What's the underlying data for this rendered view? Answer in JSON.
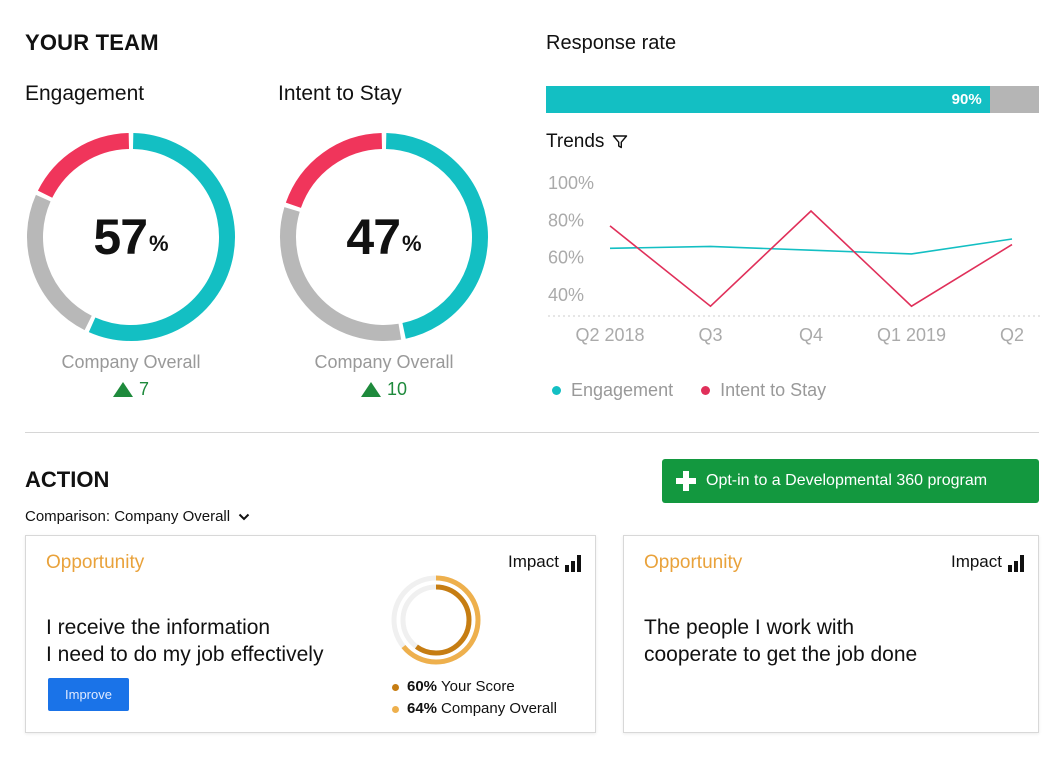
{
  "team": {
    "title": "YOUR TEAM",
    "engagement": {
      "label": "Engagement",
      "value": "57",
      "unit": "%",
      "company_label": "Company Overall",
      "delta": "7",
      "segments": {
        "favorable": 0.57,
        "neutral": 0.25,
        "unfavorable": 0.18
      }
    },
    "intent": {
      "label": "Intent to Stay",
      "value": "47",
      "unit": "%",
      "company_label": "Company Overall",
      "delta": "10",
      "segments": {
        "favorable": 0.47,
        "neutral": 0.33,
        "unfavorable": 0.2
      }
    }
  },
  "response": {
    "title": "Response rate",
    "value_label": "90%",
    "value": 0.9
  },
  "trends": {
    "title": "Trends",
    "filter_icon": "filter-icon"
  },
  "chart_data": {
    "type": "line",
    "categories": [
      "Q2 2018",
      "Q3",
      "Q4",
      "Q1 2019",
      "Q2"
    ],
    "y_ticks": [
      "100%",
      "80%",
      "60%",
      "40%"
    ],
    "ylim": [
      30,
      100
    ],
    "series": [
      {
        "name": "Engagement",
        "color": "#13bfc3",
        "values": [
          65,
          66,
          64,
          62,
          70
        ]
      },
      {
        "name": "Intent to Stay",
        "color": "#e0305a",
        "values": [
          77,
          34,
          85,
          34,
          67
        ]
      }
    ]
  },
  "action": {
    "title": "ACTION",
    "comparison": "Comparison: Company Overall",
    "optin_label": "Opt-in to a Developmental 360 program",
    "cards": [
      {
        "opportunity": "Opportunity",
        "impact": "Impact",
        "line1": "I receive the information",
        "line2": "I need to do my job effectively",
        "improve": "Improve",
        "your_score_pct": "60%",
        "your_score_label": "Your Score",
        "company_pct": "64%",
        "company_label": "Company Overall",
        "your_score": 0.6,
        "company_score": 0.64
      },
      {
        "opportunity": "Opportunity",
        "impact": "Impact",
        "line1": "The people I work with",
        "line2": "cooperate to get the job done"
      }
    ]
  },
  "colors": {
    "teal": "#13bfc3",
    "red": "#f0355b",
    "gray": "#b8b8b8",
    "green": "#13983f",
    "orange": "#e9a23b",
    "gold": "#d88e1e"
  }
}
